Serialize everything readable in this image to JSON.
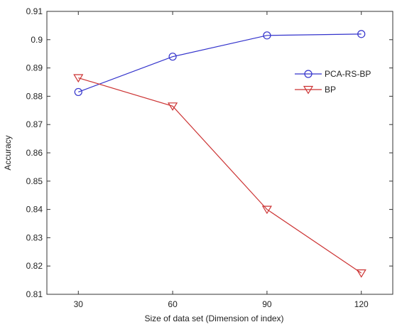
{
  "chart_data": {
    "type": "line",
    "title": "",
    "xlabel": "Size of data set (Dimension of index)",
    "ylabel": "Accuracy",
    "x": [
      30,
      60,
      90,
      120
    ],
    "x_tick_labels": [
      "30",
      "60",
      "90",
      "120"
    ],
    "y_tick_labels": [
      "0.81",
      "0.82",
      "0.83",
      "0.84",
      "0.85",
      "0.86",
      "0.87",
      "0.88",
      "0.89",
      "0.9",
      "0.91"
    ],
    "xlim": [
      20,
      130
    ],
    "ylim": [
      0.81,
      0.91
    ],
    "grid": false,
    "legend_position": "top-right",
    "series": [
      {
        "name": "PCA-RS-BP",
        "marker": "circle",
        "color": "#3333cc",
        "values": [
          0.8815,
          0.894,
          0.9015,
          0.902
        ]
      },
      {
        "name": "BP",
        "marker": "triangle-down",
        "color": "#cc3333",
        "values": [
          0.8865,
          0.8765,
          0.84,
          0.8175
        ]
      }
    ]
  }
}
